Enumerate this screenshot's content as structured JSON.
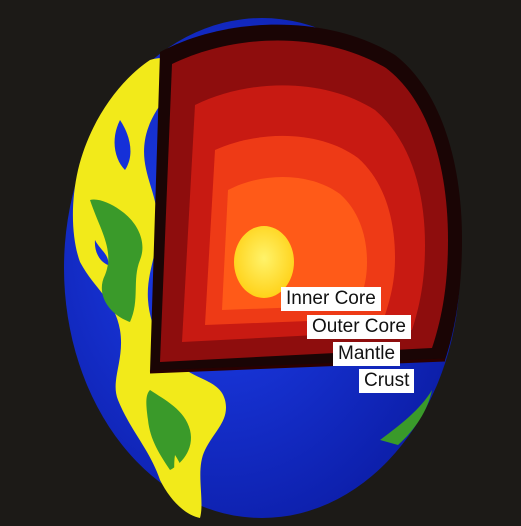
{
  "labels": {
    "inner_core": "Inner Core",
    "outer_core": "Outer Core",
    "mantle": "Mantle",
    "crust": "Crust"
  },
  "colors": {
    "background": "#1c1a17",
    "ocean": "#1530d8",
    "land_yellow": "#f2ea1a",
    "land_green": "#3a9a2a",
    "crust_shell": "#1a0505",
    "mantle_outer": "#8e0d0d",
    "mantle_inner": "#c81a12",
    "outer_core": "#ee3a16",
    "outer_core_inner": "#ff5a18",
    "inner_core": "#ffe02a",
    "label_bg": "#ffffff"
  }
}
